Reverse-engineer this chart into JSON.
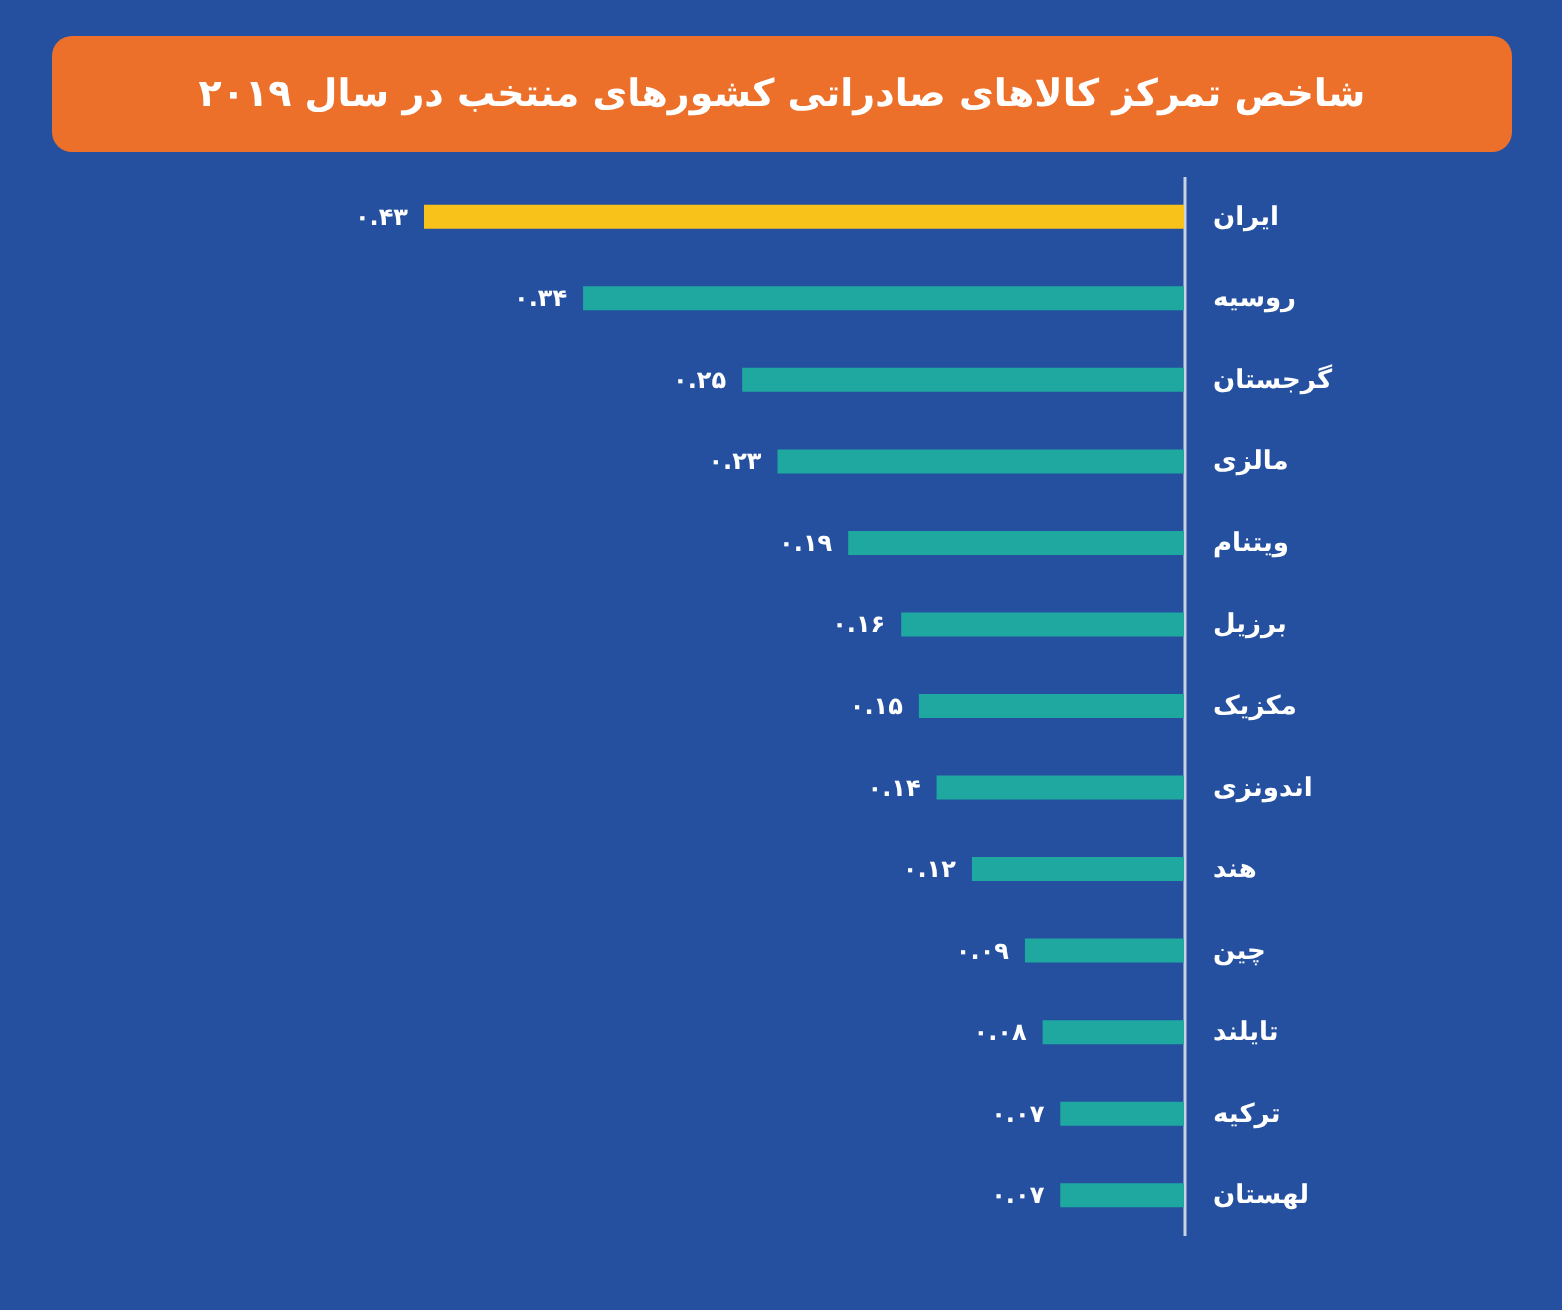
{
  "chart_data": {
    "type": "bar",
    "orientation": "horizontal",
    "title": "شاخص تمرکز کالاهای صادراتی کشورهای منتخب  در سال ۲۰۱۹",
    "categories": [
      "ایران",
      "روسیه",
      "گرجستان",
      "مالزی",
      "ویتنام",
      "برزیل",
      "مکزیک",
      "اندونزی",
      "هند",
      "چین",
      "تایلند",
      "ترکیه",
      "لهستان"
    ],
    "values": [
      0.43,
      0.34,
      0.25,
      0.23,
      0.19,
      0.16,
      0.15,
      0.14,
      0.12,
      0.09,
      0.08,
      0.07,
      0.07
    ],
    "colors": [
      "#f9c21a",
      "#1fa8a0",
      "#1fa8a0",
      "#1fa8a0",
      "#1fa8a0",
      "#1fa8a0",
      "#1fa8a0",
      "#1fa8a0",
      "#1fa8a0",
      "#1fa8a0",
      "#1fa8a0",
      "#1fa8a0",
      "#1fa8a0"
    ],
    "value_labels": [
      "۰.۴۳",
      "۰.۳۴",
      "۰.۲۵",
      "۰.۲۳",
      "۰.۱۹",
      "۰.۱۶",
      "۰.۱۵",
      "۰.۱۴",
      "۰.۱۲",
      "۰.۰۹",
      "۰.۰۸",
      "۰.۰۷",
      "۰.۰۷"
    ]
  }
}
